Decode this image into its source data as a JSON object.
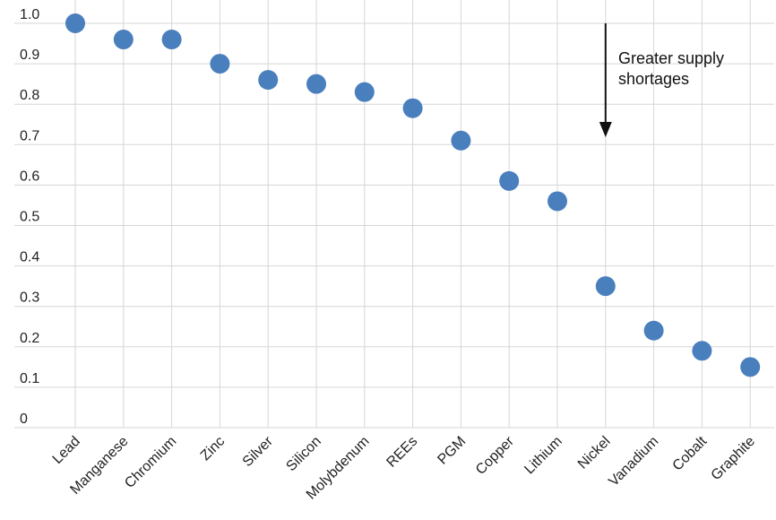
{
  "chart_data": {
    "type": "scatter",
    "categories": [
      "Lead",
      "Manganese",
      "Chromium",
      "Zinc",
      "Silver",
      "Silicon",
      "Molybdenum",
      "REEs",
      "PGM",
      "Copper",
      "Lithium",
      "Nickel",
      "Vanadium",
      "Cobalt",
      "Graphite"
    ],
    "series": [
      {
        "values": [
          1.0,
          0.96,
          0.96,
          0.9,
          0.86,
          0.85,
          0.83,
          0.79,
          0.71,
          0.61,
          0.56,
          0.35,
          0.24,
          0.19,
          0.15
        ]
      }
    ],
    "yticks": [
      "0",
      "0.1",
      "0.2",
      "0.3",
      "0.4",
      "0.5",
      "0.6",
      "0.7",
      "0.8",
      "0.9",
      "1.0"
    ],
    "ylim": [
      0,
      1.0
    ],
    "grid": true,
    "annotation": {
      "lines": [
        "Greater supply",
        "shortages"
      ],
      "arrow_direction": "down",
      "at_category": "Nickel"
    },
    "colors": {
      "marker": "#4a7fbe",
      "grid": "#d6d6d6",
      "text": "#222222",
      "arrow": "#111111"
    }
  }
}
